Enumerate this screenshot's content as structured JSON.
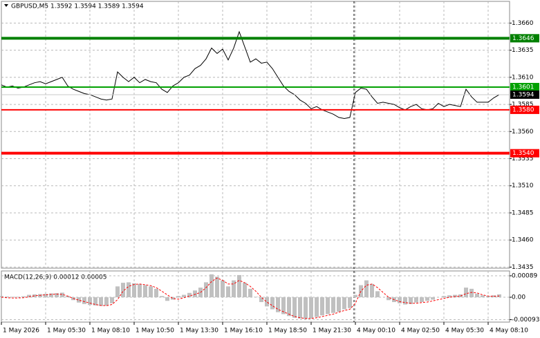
{
  "chart_data": [
    {
      "type": "line",
      "title": "GBPUSD,M5  1.3592 1.3594 1.3589 1.3594",
      "categories": [
        "1 May 2026",
        null,
        null,
        null,
        null,
        null,
        null,
        null,
        "1 May 05:30",
        null,
        null,
        null,
        null,
        null,
        null,
        null,
        "1 May 08:10",
        null,
        null,
        null,
        null,
        null,
        null,
        null,
        "1 May 10:50",
        null,
        null,
        null,
        null,
        null,
        null,
        null,
        "1 May 13:30",
        null,
        null,
        null,
        null,
        null,
        null,
        null,
        "1 May 16:10",
        null,
        null,
        null,
        null,
        null,
        null,
        null,
        "1 May 18:50",
        null,
        null,
        null,
        null,
        null,
        null,
        null,
        "1 May 21:30",
        null,
        null,
        null,
        null,
        null,
        null,
        null,
        "4 May 00:10",
        null,
        null,
        null,
        null,
        null,
        null,
        null,
        "4 May 02:50",
        null,
        null,
        null,
        null,
        null,
        null,
        null,
        "4 May 05:30",
        null,
        null,
        null,
        null,
        null,
        null,
        null,
        "4 May 08:10",
        null,
        null
      ],
      "values": [
        1.3603,
        1.3601,
        1.3602,
        1.36,
        1.3601,
        1.3603,
        1.3605,
        1.3606,
        1.3604,
        1.3606,
        1.3608,
        1.361,
        1.3602,
        1.3599,
        1.3597,
        1.3595,
        1.3594,
        1.3592,
        1.359,
        1.3589,
        1.359,
        1.3615,
        1.361,
        1.3606,
        1.361,
        1.3605,
        1.3608,
        1.3606,
        1.3605,
        1.3599,
        1.3596,
        1.3602,
        1.3605,
        1.361,
        1.3612,
        1.3618,
        1.3621,
        1.3627,
        1.3637,
        1.3632,
        1.3636,
        1.3626,
        1.3637,
        1.3652,
        1.3638,
        1.3624,
        1.3627,
        1.3623,
        1.3624,
        1.3618,
        1.361,
        1.3602,
        1.3597,
        1.3594,
        1.3589,
        1.3586,
        1.3581,
        1.3583,
        1.358,
        1.3578,
        1.3576,
        1.3573,
        1.3572,
        1.3573,
        1.3596,
        1.36,
        1.3599,
        1.3592,
        1.3586,
        1.3587,
        1.3586,
        1.3585,
        1.3582,
        1.358,
        1.3583,
        1.3585,
        1.3581,
        1.358,
        1.3581,
        1.3586,
        1.3583,
        1.3585,
        1.3584,
        1.3583,
        1.3599,
        1.3592,
        1.3587,
        1.3587,
        1.3587,
        1.3591,
        1.3594
      ],
      "color": "#000000",
      "ylim": [
        1.3434,
        1.368
      ],
      "yticks": [
        {
          "value": 1.366,
          "label": "1.3660"
        },
        1.3635,
        {
          "value": 1.361,
          "label": "1.3610"
        },
        1.3585,
        {
          "value": 1.356,
          "label": "1.3560"
        },
        1.3535,
        {
          "value": 1.351,
          "label": "1.3510"
        },
        1.3485,
        {
          "value": 1.346,
          "label": "1.3460"
        },
        1.3435
      ],
      "grid": true,
      "levels": [
        {
          "value": 1.3646,
          "label": "1.3646",
          "color": "#008000"
        },
        {
          "value": 1.3601,
          "label": "1.3601",
          "color": "#00a000"
        },
        {
          "value": 1.358,
          "label": "1.3580",
          "color": "#ff0000"
        },
        {
          "value": 1.354,
          "label": "1.3540",
          "color": "#ff0000"
        }
      ],
      "last_price": {
        "value": 1.3594,
        "label": "1.3594"
      }
    },
    {
      "type": "bar",
      "title": "MACD(12,26,9) 0.00012 0.00005",
      "series": [
        {
          "type": "bar",
          "color": "#c0c0c0",
          "values": [
            5e-05,
            3e-05,
            2e-05,
            2e-05,
            4e-05,
            0.0001,
            0.00012,
            0.00013,
            0.00014,
            0.00016,
            0.00017,
            0.00019,
            5e-05,
            -0.00012,
            -0.00022,
            -0.00028,
            -0.00032,
            -0.00034,
            -0.00036,
            -0.00035,
            -0.00025,
            0.00045,
            0.0006,
            0.00062,
            0.00058,
            0.00055,
            0.0005,
            0.00045,
            0.00035,
            5e-05,
            -0.00015,
            -0.0001,
            5e-05,
            0.0001,
            0.00018,
            0.00028,
            0.0004,
            0.00062,
            0.00095,
            0.00085,
            0.0007,
            0.00045,
            0.0007,
            0.00092,
            0.0006,
            0.00035,
            2e-05,
            -0.0002,
            -0.00038,
            -0.0005,
            -0.00062,
            -0.0007,
            -0.00078,
            -0.00085,
            -0.00088,
            -0.0009,
            -0.00088,
            -0.00082,
            -0.00075,
            -0.0007,
            -0.00065,
            -0.0006,
            -0.0005,
            -0.00045,
            0.0001,
            0.0005,
            0.0007,
            0.00055,
            0.00025,
            0,
            -0.00012,
            -0.0002,
            -0.00025,
            -0.0003,
            -0.00028,
            -0.00022,
            -0.0002,
            -0.00015,
            -0.0001,
            0,
            5e-05,
            8e-05,
            0.0001,
            0.00012,
            0.0004,
            0.00035,
            0.00015,
            8e-05,
            5e-05,
            8e-05,
            0.00012
          ]
        },
        {
          "type": "line",
          "color": "#ff0000",
          "values": [
            0,
            -2e-05,
            -3e-05,
            -3e-05,
            -2e-05,
            2e-05,
            6e-05,
            8e-05,
            0.0001,
            0.00012,
            0.00013,
            0.00012,
            5e-05,
            -5e-05,
            -0.00012,
            -0.00018,
            -0.00024,
            -0.0003,
            -0.00034,
            -0.00035,
            -0.0003,
            -0.0001,
            0.00025,
            0.00045,
            0.00053,
            0.00055,
            0.00052,
            0.00048,
            0.0004,
            0.00025,
            0.0001,
            -5e-05,
            -8e-05,
            -2e-05,
            5e-05,
            0.00012,
            0.0002,
            0.0004,
            0.00065,
            0.0008,
            0.0007,
            0.00055,
            0.00055,
            0.0007,
            0.0006,
            0.00045,
            0.00025,
            0,
            -0.0002,
            -0.00035,
            -0.0005,
            -0.0006,
            -0.0007,
            -0.0008,
            -0.00085,
            -0.00088,
            -0.00088,
            -0.00085,
            -0.0008,
            -0.00075,
            -0.0007,
            -0.00062,
            -0.00055,
            -0.0005,
            -0.00025,
            0.00025,
            0.0005,
            0.00055,
            0.0004,
            0.0002,
            0,
            -0.0001,
            -0.00018,
            -0.00022,
            -0.00025,
            -0.00025,
            -0.00022,
            -0.0002,
            -0.00015,
            -0.0001,
            -5e-05,
            0,
            3e-05,
            5e-05,
            0.00015,
            0.0002,
            0.00018,
            0.0001,
            5e-05,
            4e-05,
            5e-05
          ]
        }
      ],
      "ylim": [
        -0.00103,
        0.00109
      ],
      "yticks": [
        0.00089,
        {
          "value": 0,
          "label": "0.00"
        },
        -0.00093
      ],
      "grid": true
    }
  ]
}
